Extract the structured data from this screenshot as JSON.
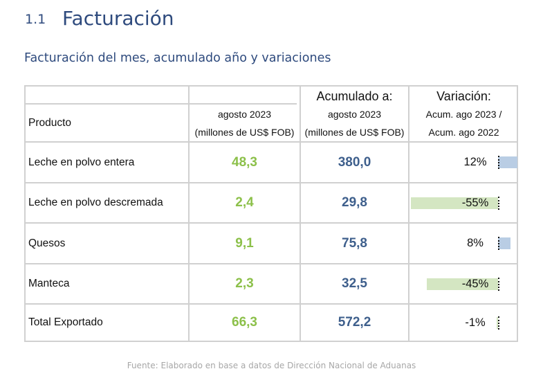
{
  "section": {
    "number": "1.1",
    "title": "Facturación"
  },
  "subtitle": "Facturación del mes, acumulado año y variaciones",
  "table": {
    "header": {
      "group_accumulated": "Acumulado a:",
      "group_variation": "Variación:",
      "product": "Producto",
      "month_line1": "agosto 2023",
      "month_line2": "(millones de US$ FOB)",
      "acc_line1": "agosto 2023",
      "acc_line2": "(millones de US$ FOB)",
      "var_line1": "Acum. ago 2023 /",
      "var_line2": "Acum. ago 2022"
    },
    "rows": [
      {
        "product": "Leche en polvo entera",
        "month": "48,3",
        "accumulated": "380,0",
        "variation": "12%",
        "variation_value": 12
      },
      {
        "product": "Leche en polvo descremada",
        "month": "2,4",
        "accumulated": "29,8",
        "variation": "-55%",
        "variation_value": -55
      },
      {
        "product": "Quesos",
        "month": "9,1",
        "accumulated": "75,8",
        "variation": "8%",
        "variation_value": 8
      },
      {
        "product": "Manteca",
        "month": "2,3",
        "accumulated": "32,5",
        "variation": "-45%",
        "variation_value": -45
      },
      {
        "product": "Total Exportado",
        "month": "66,3",
        "accumulated": "572,2",
        "variation": "-1%",
        "variation_value": -1
      }
    ],
    "colors": {
      "month_value": "#8cc04a",
      "accumulated_value": "#3e5f8c",
      "bar_positive": "#b9cde4",
      "bar_negative": "#d4e6c2"
    }
  },
  "source": "Fuente: Elaborado en base a datos de Dirección Nacional de Aduanas"
}
